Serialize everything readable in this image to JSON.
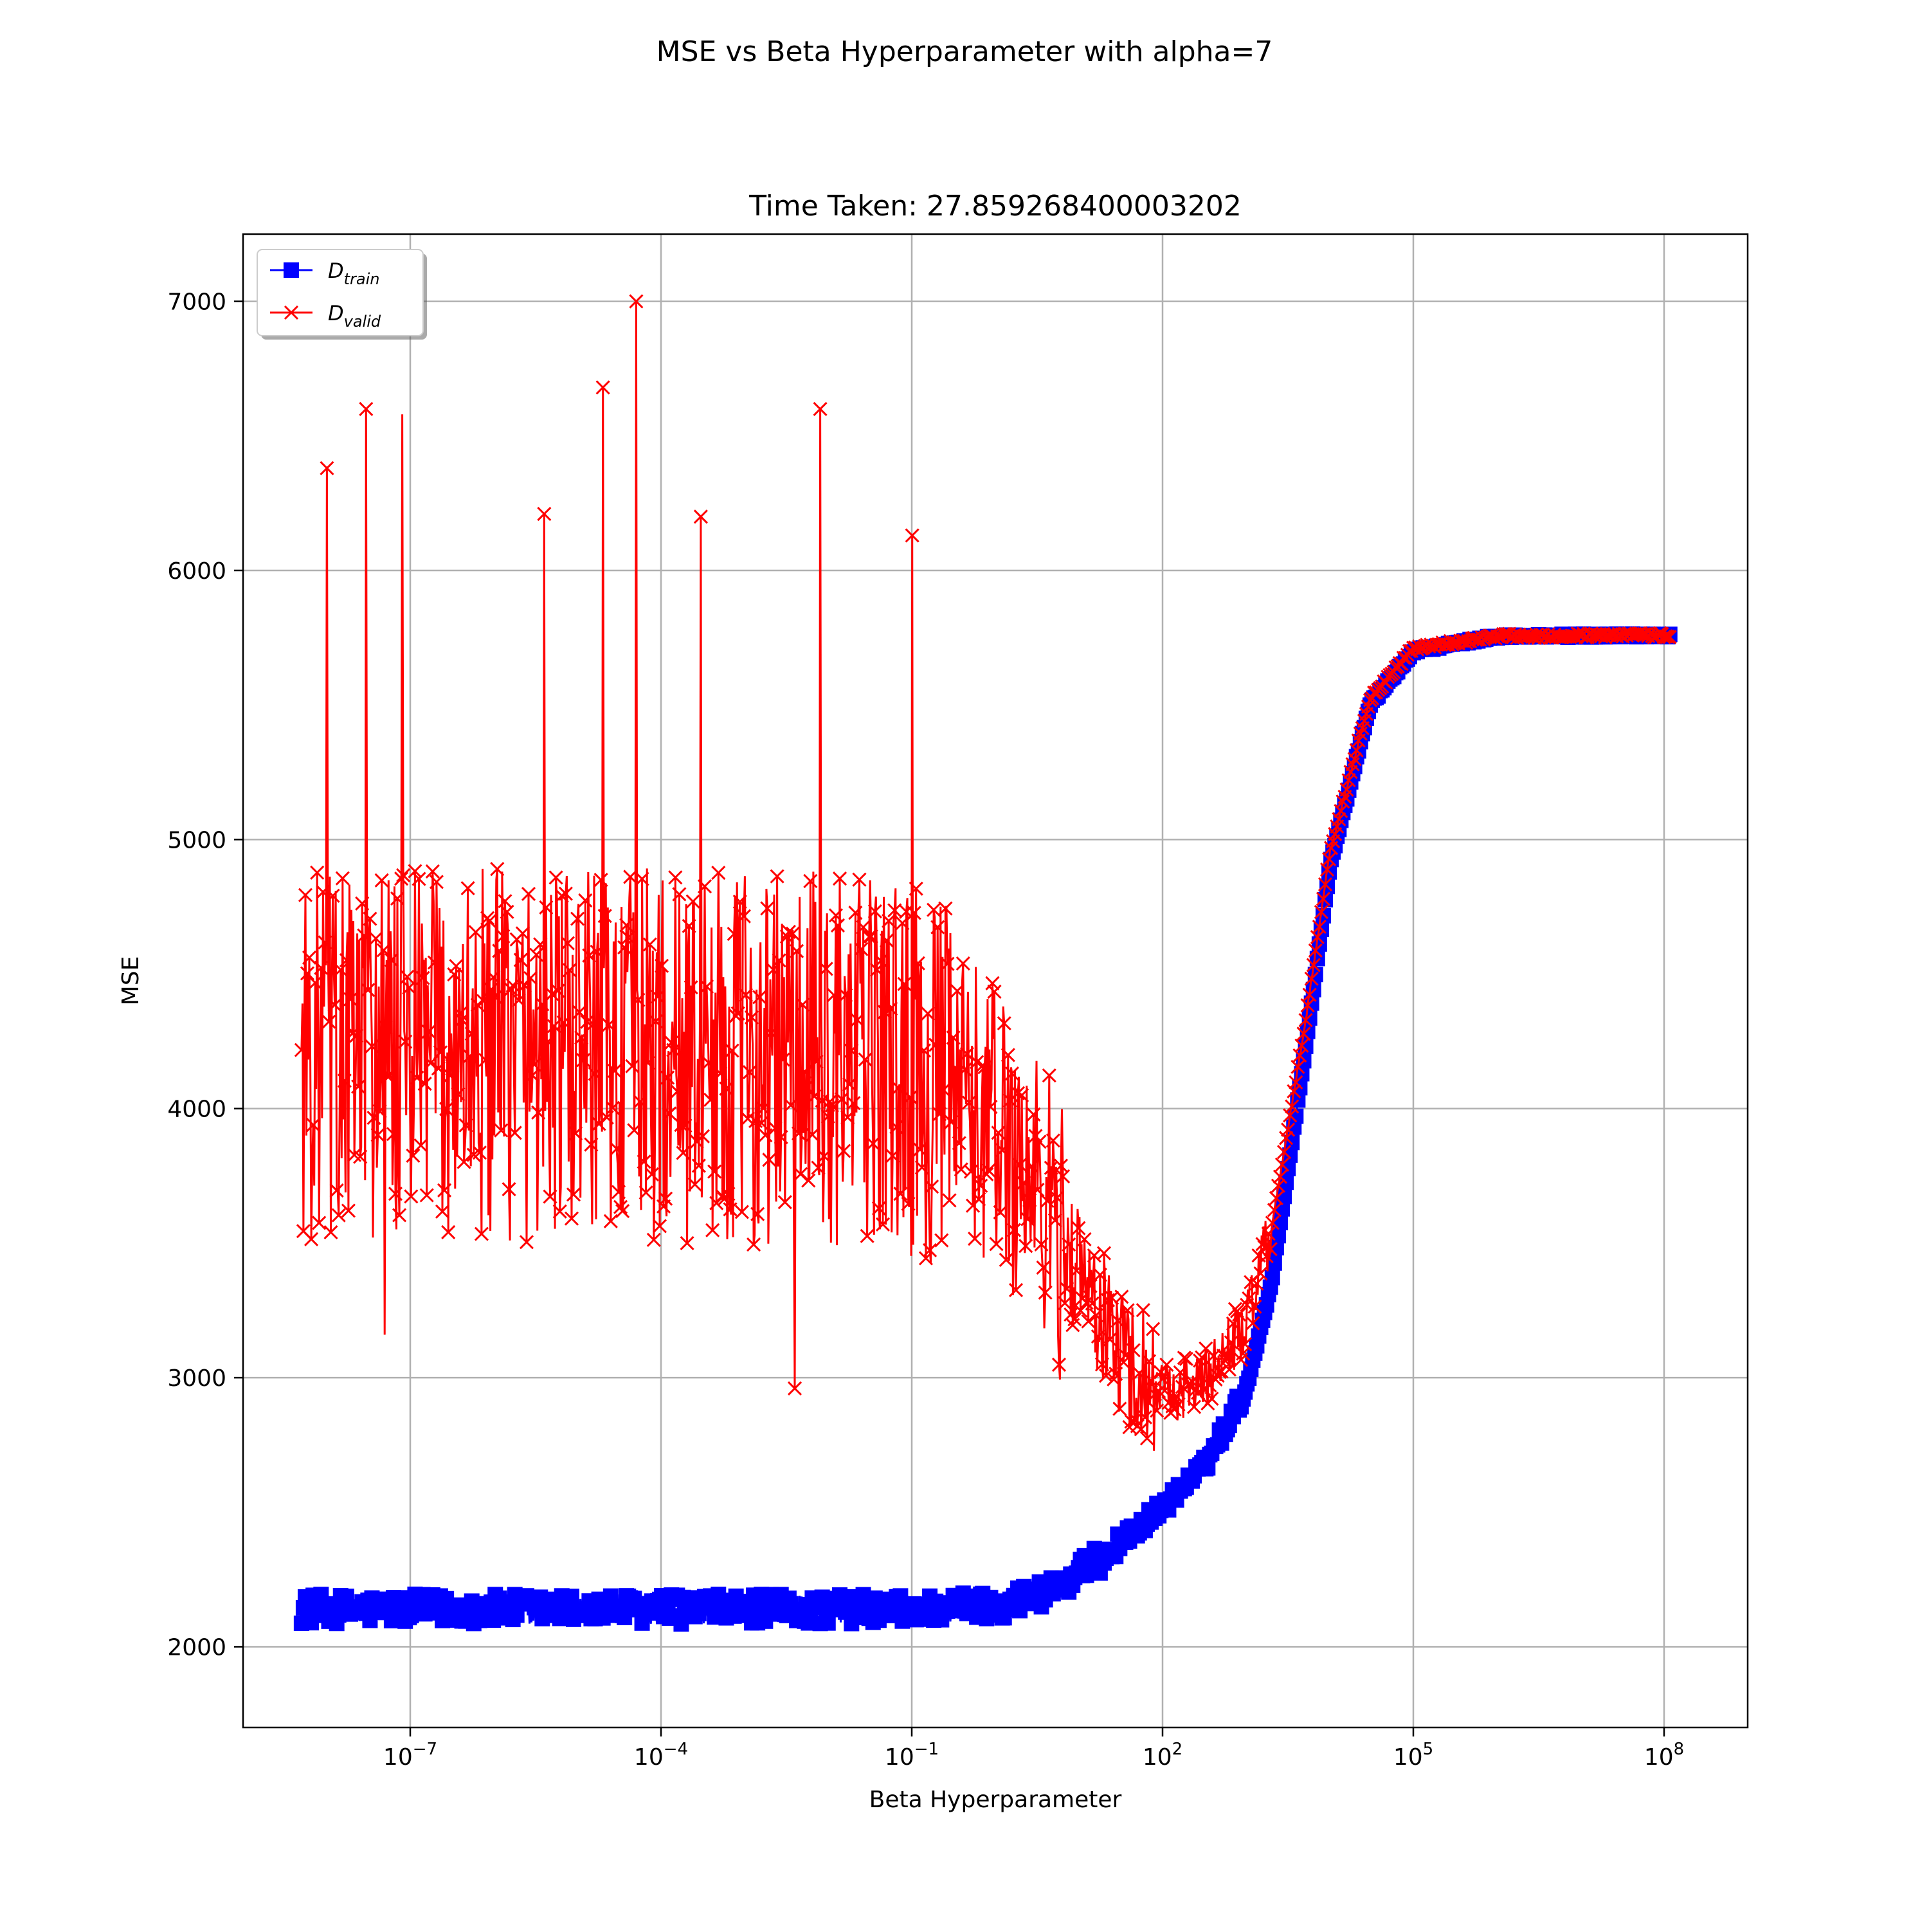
{
  "figure": {
    "suptitle": "MSE vs Beta Hyperparameter with alpha=7"
  },
  "chart_data": {
    "type": "line",
    "title": "Time Taken: 27.859268400003202",
    "xlabel": "Beta Hyperparameter",
    "ylabel": "MSE",
    "xscale": "log",
    "xlim": [
      1e-09,
      1000000000.0
    ],
    "ylim": [
      1700,
      7250
    ],
    "grid": true,
    "legend_position": "top-left",
    "xticks": [
      {
        "base": "10",
        "exp": "−7",
        "value": 1e-07
      },
      {
        "base": "10",
        "exp": "−4",
        "value": 0.0001
      },
      {
        "base": "10",
        "exp": "−1",
        "value": 0.1
      },
      {
        "base": "10",
        "exp": "2",
        "value": 100.0
      },
      {
        "base": "10",
        "exp": "5",
        "value": 100000.0
      },
      {
        "base": "10",
        "exp": "8",
        "value": 100000000.0
      }
    ],
    "yticks": [
      {
        "label": "2000",
        "value": 2000
      },
      {
        "label": "3000",
        "value": 3000
      },
      {
        "label": "4000",
        "value": 4000
      },
      {
        "label": "5000",
        "value": 5000
      },
      {
        "label": "6000",
        "value": 6000
      },
      {
        "label": "7000",
        "value": 7000
      }
    ],
    "series": [
      {
        "name_main": "D",
        "name_sub": "train",
        "color": "#0000ff",
        "marker": "square",
        "x_range": [
          5e-09,
          120000000.0
        ],
        "description": "noisy around 2140 at small beta, rises to a plateau near 5760 at large beta",
        "points": [
          [
            5e-09,
            2140
          ],
          [
            1e-07,
            2140
          ],
          [
            0.0001,
            2140
          ],
          [
            0.01,
            2140
          ],
          [
            0.1,
            2140
          ],
          [
            1,
            2155
          ],
          [
            3,
            2190
          ],
          [
            10,
            2270
          ],
          [
            30,
            2380
          ],
          [
            100,
            2520
          ],
          [
            300,
            2660
          ],
          [
            1000,
            2960
          ],
          [
            2000,
            3350
          ],
          [
            5000,
            4200
          ],
          [
            10000,
            4900
          ],
          [
            30000,
            5500
          ],
          [
            100000,
            5700
          ],
          [
            1000000,
            5755
          ],
          [
            120000000,
            5760
          ]
        ]
      },
      {
        "name_main": "D",
        "name_sub": "valid",
        "color": "#ff0000",
        "marker": "x",
        "x_range": [
          5e-09,
          120000000.0
        ],
        "description": "very noisy between ~3500 and ~5000 (spikes to 7000) at small beta, dips near 2950 around beta=100, then converges with D_train to ~5760",
        "points": [
          [
            5e-09,
            4200
          ],
          [
            1e-07,
            4200
          ],
          [
            0.0001,
            4200
          ],
          [
            0.01,
            4180
          ],
          [
            0.1,
            4150
          ],
          [
            1,
            3950
          ],
          [
            3,
            3700
          ],
          [
            10,
            3400
          ],
          [
            30,
            3100
          ],
          [
            100,
            2950
          ],
          [
            300,
            2980
          ],
          [
            1000,
            3200
          ],
          [
            2000,
            3550
          ],
          [
            5000,
            4300
          ],
          [
            10000,
            4950
          ],
          [
            30000,
            5520
          ],
          [
            100000,
            5710
          ],
          [
            1000000,
            5756
          ],
          [
            120000000,
            5760
          ]
        ],
        "spikes": [
          [
            1e-08,
            6380
          ],
          [
            3e-08,
            6600
          ],
          [
            5e-08,
            6640
          ],
          [
            8e-08,
            6580
          ],
          [
            2e-05,
            6680
          ],
          [
            5e-05,
            7000
          ],
          [
            0.008,
            6600
          ],
          [
            0.1,
            6130
          ],
          [
            4e-06,
            6210
          ],
          [
            0.0003,
            6200
          ],
          [
            5e-08,
            3160
          ],
          [
            0.004,
            2960
          ]
        ]
      }
    ]
  }
}
